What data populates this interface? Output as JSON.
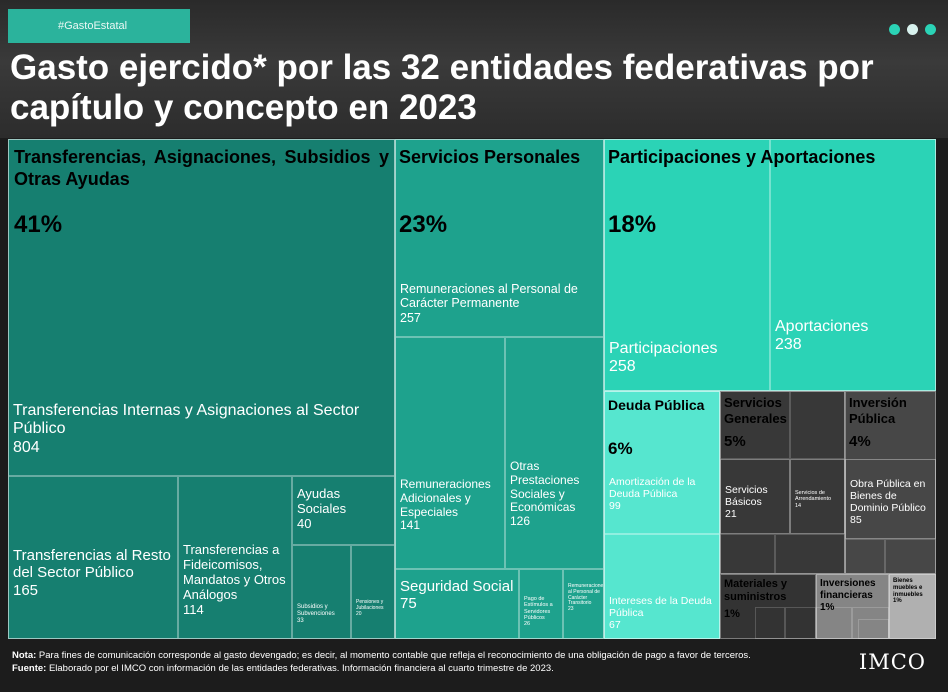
{
  "tag": "#GastoEstatal",
  "title": "Gasto ejercido* por las 32 entidades federativas por capítulo y concepto en 2023",
  "colors": {
    "transferencias": "#167f70",
    "servicios_personales": "#1ea28d",
    "participaciones": "#2bd3b6",
    "deuda": "#56e6cf",
    "servicios_generales": "#383838",
    "inversion": "#474747",
    "materiales": "#333333",
    "inversiones_financieras": "#858585",
    "bienes_muebles": "#b0b0b0",
    "dots": [
      "#2bd3b6",
      "#d8f2ee",
      "#2bd3b6"
    ]
  },
  "chart_data": {
    "type": "treemap",
    "chapters": [
      {
        "name": "Transferencias, Asignaciones, Subsidios y Otras Ayudas",
        "share": "41%",
        "concepts": [
          {
            "name": "Transferencias Internas y Asignaciones al Sector Público",
            "value": "804"
          },
          {
            "name": "Transferencias al Resto del Sector Público",
            "value": "165"
          },
          {
            "name": "Transferencias a Fideicomisos, Mandatos y Otros Análogos",
            "value": "114"
          },
          {
            "name": "Ayudas Sociales",
            "value": "40"
          },
          {
            "name": "Subsidios y Subvenciones",
            "value": "33"
          },
          {
            "name": "Pensiones y Jubilaciones",
            "value": "20"
          }
        ]
      },
      {
        "name": "Servicios Personales",
        "share": "23%",
        "concepts": [
          {
            "name": "Remuneraciones al Personal de Carácter Permanente",
            "value": "257"
          },
          {
            "name": "Remuneraciones Adicionales y Especiales",
            "value": "141"
          },
          {
            "name": "Otras Prestaciones Sociales y Económicas",
            "value": "126"
          },
          {
            "name": "Seguridad Social",
            "value": "75"
          },
          {
            "name": "Pago de Estímulos a Servidores Públicos",
            "value": "26"
          },
          {
            "name": "Remuneraciones al Personal de Carácter Transitorio",
            "value": "23"
          }
        ]
      },
      {
        "name": "Participaciones y Aportaciones",
        "share": "18%",
        "concepts": [
          {
            "name": "Participaciones",
            "value": "258"
          },
          {
            "name": "Aportaciones",
            "value": "238"
          }
        ]
      },
      {
        "name": "Deuda Pública",
        "share": "6%",
        "concepts": [
          {
            "name": "Amortización de la Deuda Pública",
            "value": "99"
          },
          {
            "name": "Intereses de la Deuda Pública",
            "value": "67"
          }
        ]
      },
      {
        "name": "Servicios Generales",
        "share": "5%",
        "concepts": [
          {
            "name": "Servicios Básicos",
            "value": "21"
          },
          {
            "name": "Servicios de Arrendamiento",
            "value": "14"
          }
        ]
      },
      {
        "name": "Inversión Pública",
        "share": "4%",
        "concepts": [
          {
            "name": "Obra Pública en Bienes de Dominio Público",
            "value": "85"
          }
        ]
      },
      {
        "name": "Materiales y suministros",
        "share": "1%",
        "concepts": []
      },
      {
        "name": "Inversiones financieras",
        "share": "1%",
        "concepts": []
      },
      {
        "name": "Bienes muebles e inmuebles",
        "share": "1%",
        "concepts": []
      }
    ]
  },
  "footer": {
    "nota_label": "Nota:",
    "nota_text": "Para fines de comunicación corresponde al gasto devengado; es decir, al momento contable que refleja el reconocimiento de una obligación de pago a favor de terceros.",
    "fuente_label": "Fuente:",
    "fuente_text": "Elaborado por el IMCO con información de las entidades federativas. Información financiera al cuarto trimestre de 2023.",
    "logo": "IMCO"
  }
}
